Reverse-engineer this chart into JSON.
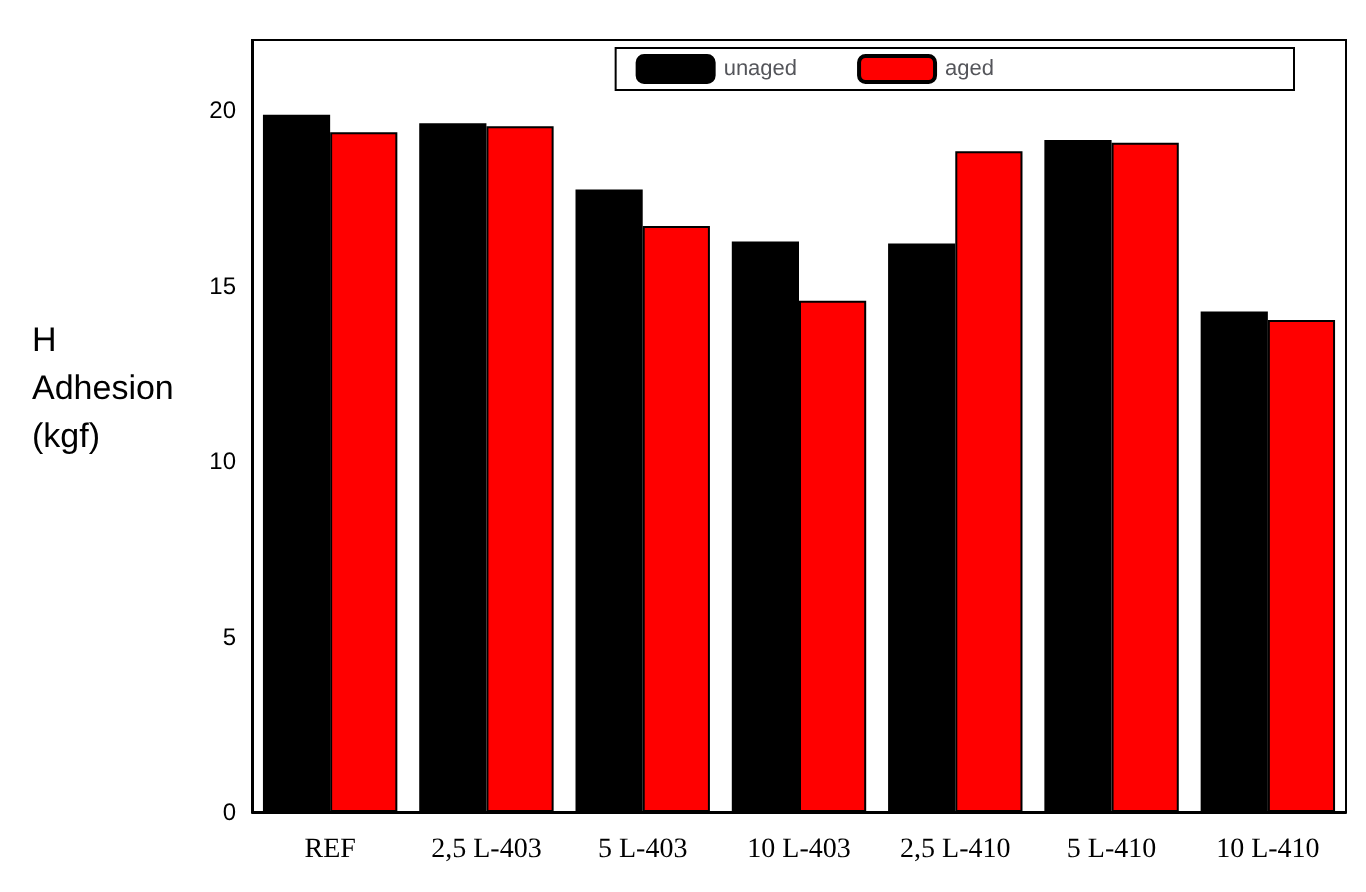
{
  "chart_data": {
    "type": "bar",
    "ylabel": "H\nAdhesion\n(kgf)",
    "categories": [
      "REF",
      "2,5 L-403",
      "5 L-403",
      "10 L-403",
      "2,5 L-410",
      "5 L-410",
      "10 L-410"
    ],
    "series": [
      {
        "name": "unaged",
        "color": "#000000",
        "values": [
          19.87,
          19.63,
          17.74,
          16.26,
          16.2,
          19.15,
          14.26
        ]
      },
      {
        "name": "aged",
        "color": "#ff0000",
        "values": [
          19.37,
          19.54,
          16.7,
          14.57,
          18.83,
          19.07,
          14.02
        ]
      }
    ],
    "ylim": [
      0,
      22
    ],
    "yticks": [
      0,
      5,
      10,
      15,
      20
    ],
    "grid": false,
    "legend": "top right"
  }
}
